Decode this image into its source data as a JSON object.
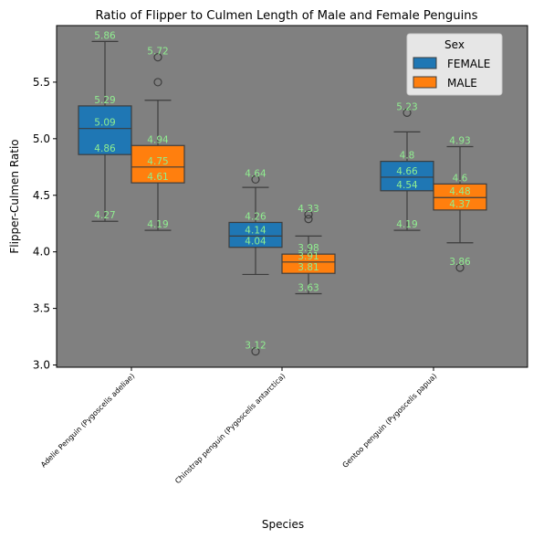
{
  "chart_data": {
    "type": "box",
    "title": "Ratio of Flipper to Culmen Length of Male and Female Penguins",
    "xlabel": "Species",
    "ylabel": "Flipper-Culmen Ratio",
    "ylim": [
      2.98,
      6.0
    ],
    "yticks": [
      "3.0",
      "3.5",
      "4.0",
      "4.5",
      "5.0",
      "5.5"
    ],
    "categories": [
      "Adelie Penguin (Pygoscelis adeliae)",
      "Chinstrap penguin (Pygoscelis antarctica)",
      "Gentoo penguin (Pygoscelis papua)"
    ],
    "plot_background": "#808080",
    "label_color": "#90ee90",
    "grid": false,
    "legend": {
      "title": "Sex",
      "position": "top-right",
      "entries": [
        "FEMALE",
        "MALE"
      ]
    },
    "series": [
      {
        "name": "FEMALE",
        "color": "#1f77b4",
        "boxes": [
          {
            "whisker_low": 4.27,
            "q1": 4.86,
            "median": 5.09,
            "q3": 5.29,
            "whisker_high": 5.86,
            "outliers": [],
            "labels": [
              "5.86",
              "5.29",
              "5.09",
              "4.86",
              "4.27"
            ]
          },
          {
            "whisker_low": 3.8,
            "q1": 4.04,
            "median": 4.14,
            "q3": 4.26,
            "whisker_high": 4.57,
            "outliers": [
              4.64,
              3.12
            ],
            "labels": [
              "4.64",
              "4.26",
              "4.14",
              "4.04",
              "3.12"
            ]
          },
          {
            "whisker_low": 4.19,
            "q1": 4.54,
            "median": 4.66,
            "q3": 4.8,
            "whisker_high": 5.06,
            "outliers": [
              5.23
            ],
            "labels": [
              "5.23",
              "4.8",
              "4.66",
              "4.54",
              "4.19"
            ]
          }
        ]
      },
      {
        "name": "MALE",
        "color": "#ff7f0e",
        "boxes": [
          {
            "whisker_low": 4.19,
            "q1": 4.61,
            "median": 4.75,
            "q3": 4.94,
            "whisker_high": 5.34,
            "outliers": [
              5.72,
              5.5
            ],
            "labels": [
              "5.72",
              "4.94",
              "4.75",
              "4.61",
              "4.19"
            ]
          },
          {
            "whisker_low": 3.63,
            "q1": 3.81,
            "median": 3.91,
            "q3": 3.98,
            "whisker_high": 4.14,
            "outliers": [
              4.33,
              4.29
            ],
            "labels": [
              "4.33",
              "3.98",
              "3.91",
              "3.81",
              "3.63"
            ]
          },
          {
            "whisker_low": 4.08,
            "q1": 4.37,
            "median": 4.48,
            "q3": 4.6,
            "whisker_high": 4.93,
            "outliers": [
              3.86
            ],
            "labels": [
              "4.93",
              "4.6",
              "4.48",
              "4.37",
              "3.86"
            ]
          }
        ]
      }
    ]
  }
}
